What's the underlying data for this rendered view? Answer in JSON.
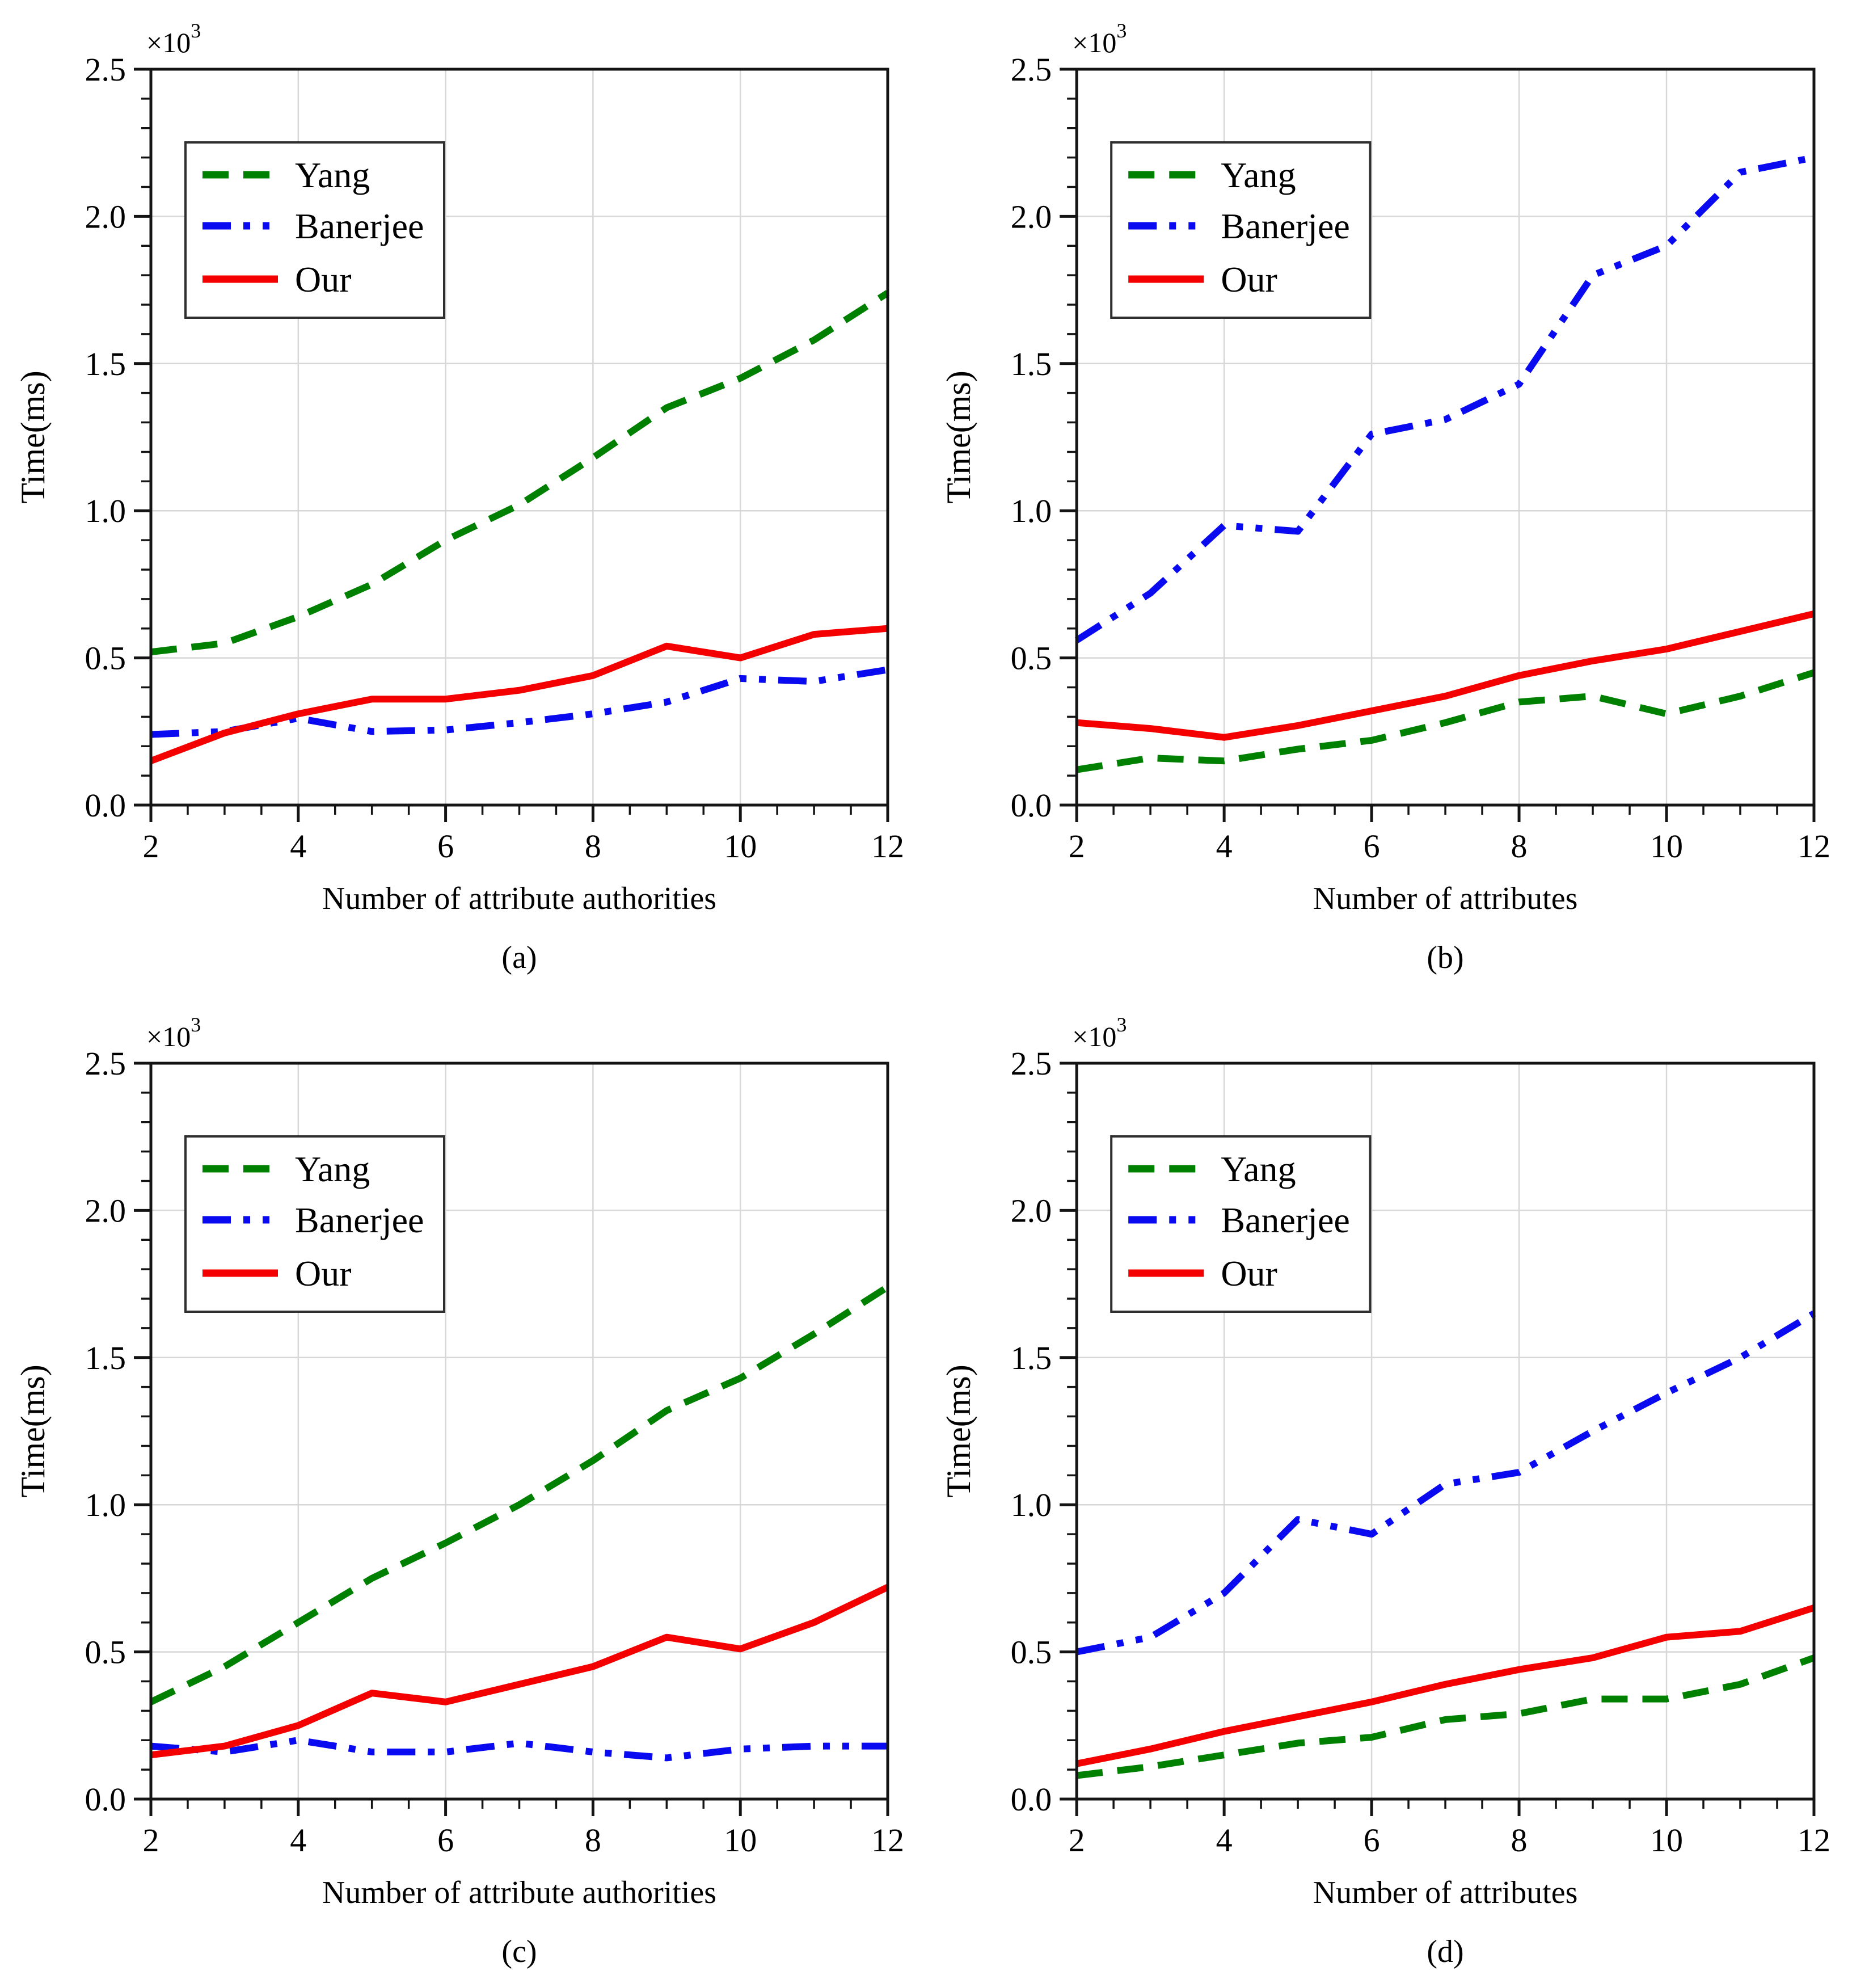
{
  "styles": {
    "background": "#ffffff",
    "axis_color": "#141414",
    "grid_color": "#d7d7d7",
    "text_color": "#000000",
    "legend_border_color": "#2f2f2f",
    "legend_fill": "#ffffff",
    "series_colors": {
      "Yang": "#008000",
      "Banerjee": "#0a0af0",
      "Our": "#f50000"
    }
  },
  "axes": {
    "y_label": "Time(ms)",
    "y_scale_base": "×10",
    "y_scale_exponent": "3",
    "y_unit": "ms",
    "y_tick_labels": [
      "0.0",
      "0.5",
      "1.0",
      "1.5",
      "2.0",
      "2.5"
    ],
    "y_major_ticks_ms": [
      0,
      500,
      1000,
      1500,
      2000,
      2500
    ],
    "y_minor_step_ms": 100,
    "y_range_ms": [
      0,
      2500
    ],
    "x_tick_labels": [
      "2",
      "4",
      "6",
      "8",
      "10",
      "12"
    ],
    "x_major_ticks": [
      2,
      4,
      6,
      8,
      10,
      12
    ],
    "x_minor_step": 0.5,
    "x_range": [
      2,
      12
    ],
    "grid": true,
    "grid_x_lines": [
      4,
      6,
      8,
      10
    ],
    "grid_y_lines_ms": [
      500,
      1000,
      1500,
      2000
    ]
  },
  "legend": {
    "position": "upper-left",
    "entries": [
      {
        "label": "Yang",
        "style": "dashed"
      },
      {
        "label": "Banerjee",
        "style": "dash-dot-dot"
      },
      {
        "label": "Our",
        "style": "solid"
      }
    ]
  },
  "chart_data": [
    {
      "type": "line",
      "caption": "(a)",
      "xlabel": "Number of attribute authorities",
      "ylabel": "Time(ms)",
      "x": [
        2,
        3,
        4,
        5,
        6,
        7,
        8,
        9,
        10,
        11,
        12
      ],
      "ylim_ms": [
        0,
        2500
      ],
      "series": [
        {
          "name": "Yang",
          "line_style": "dashed",
          "values_ms": [
            520,
            550,
            640,
            750,
            900,
            1020,
            1180,
            1350,
            1450,
            1580,
            1740
          ]
        },
        {
          "name": "Banerjee",
          "line_style": "dash-dot-dot",
          "values_ms": [
            240,
            250,
            295,
            250,
            255,
            280,
            310,
            350,
            430,
            420,
            460
          ]
        },
        {
          "name": "Our",
          "line_style": "solid",
          "values_ms": [
            150,
            245,
            310,
            360,
            360,
            390,
            440,
            540,
            500,
            580,
            600
          ]
        }
      ]
    },
    {
      "type": "line",
      "caption": "(b)",
      "xlabel": "Number of attributes",
      "ylabel": "Time(ms)",
      "x": [
        2,
        3,
        4,
        5,
        6,
        7,
        8,
        9,
        10,
        11,
        12
      ],
      "ylim_ms": [
        0,
        2500
      ],
      "series": [
        {
          "name": "Yang",
          "line_style": "dashed",
          "values_ms": [
            120,
            160,
            150,
            190,
            220,
            280,
            350,
            370,
            310,
            370,
            450
          ]
        },
        {
          "name": "Banerjee",
          "line_style": "dash-dot-dot",
          "values_ms": [
            560,
            720,
            950,
            930,
            1260,
            1310,
            1430,
            1800,
            1900,
            2150,
            2200
          ]
        },
        {
          "name": "Our",
          "line_style": "solid",
          "values_ms": [
            280,
            260,
            230,
            270,
            320,
            370,
            440,
            490,
            530,
            590,
            650
          ]
        }
      ]
    },
    {
      "type": "line",
      "caption": "(c)",
      "xlabel": "Number of attribute authorities",
      "ylabel": "Time(ms)",
      "x": [
        2,
        3,
        4,
        5,
        6,
        7,
        8,
        9,
        10,
        11,
        12
      ],
      "ylim_ms": [
        0,
        2500
      ],
      "series": [
        {
          "name": "Yang",
          "line_style": "dashed",
          "values_ms": [
            330,
            450,
            600,
            750,
            870,
            1000,
            1150,
            1320,
            1430,
            1580,
            1740
          ]
        },
        {
          "name": "Banerjee",
          "line_style": "dash-dot-dot",
          "values_ms": [
            180,
            160,
            200,
            160,
            160,
            190,
            160,
            140,
            170,
            180,
            180
          ]
        },
        {
          "name": "Our",
          "line_style": "solid",
          "values_ms": [
            150,
            180,
            250,
            360,
            330,
            390,
            450,
            550,
            510,
            600,
            720
          ]
        }
      ]
    },
    {
      "type": "line",
      "caption": "(d)",
      "xlabel": "Number of attributes",
      "ylabel": "Time(ms)",
      "x": [
        2,
        3,
        4,
        5,
        6,
        7,
        8,
        9,
        10,
        11,
        12
      ],
      "ylim_ms": [
        0,
        2500
      ],
      "series": [
        {
          "name": "Yang",
          "line_style": "dashed",
          "values_ms": [
            80,
            110,
            150,
            190,
            210,
            270,
            290,
            340,
            340,
            390,
            480
          ]
        },
        {
          "name": "Banerjee",
          "line_style": "dash-dot-dot",
          "values_ms": [
            500,
            550,
            700,
            950,
            900,
            1070,
            1110,
            1250,
            1380,
            1500,
            1650
          ]
        },
        {
          "name": "Our",
          "line_style": "solid",
          "values_ms": [
            120,
            170,
            230,
            280,
            330,
            390,
            440,
            480,
            550,
            570,
            650
          ]
        }
      ]
    }
  ]
}
